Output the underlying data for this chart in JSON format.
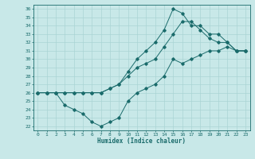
{
  "title": "",
  "xlabel": "Humidex (Indice chaleur)",
  "background_color": "#c8e8e8",
  "grid_color": "#aad4d4",
  "line_color": "#1a6b6b",
  "xlim": [
    -0.5,
    23.5
  ],
  "ylim": [
    21.5,
    36.5
  ],
  "xticks": [
    0,
    1,
    2,
    3,
    4,
    5,
    6,
    7,
    8,
    9,
    10,
    11,
    12,
    13,
    14,
    15,
    16,
    17,
    18,
    19,
    20,
    21,
    22,
    23
  ],
  "yticks": [
    22,
    23,
    24,
    25,
    26,
    27,
    28,
    29,
    30,
    31,
    32,
    33,
    34,
    35,
    36
  ],
  "line1_x": [
    0,
    1,
    2,
    3,
    4,
    5,
    6,
    7,
    8,
    9,
    10,
    11,
    12,
    13,
    14,
    15,
    16,
    17,
    18,
    19,
    20,
    21,
    22,
    23
  ],
  "line1_y": [
    26,
    26,
    26,
    24.5,
    24,
    23.5,
    22.5,
    22,
    22.5,
    23,
    25,
    26,
    26.5,
    27,
    28,
    30,
    29.5,
    30,
    30.5,
    31,
    31,
    31.5,
    31,
    31
  ],
  "line2_x": [
    0,
    1,
    2,
    3,
    4,
    5,
    6,
    7,
    8,
    9,
    10,
    11,
    12,
    13,
    14,
    15,
    16,
    17,
    18,
    19,
    20,
    21,
    22,
    23
  ],
  "line2_y": [
    26,
    26,
    26,
    26,
    26,
    26,
    26,
    26,
    26.5,
    27,
    28,
    29,
    29.5,
    30,
    31.5,
    33,
    34.5,
    34.5,
    33.5,
    32.5,
    32,
    32,
    31,
    31
  ],
  "line3_x": [
    0,
    1,
    2,
    3,
    4,
    5,
    6,
    7,
    8,
    9,
    10,
    11,
    12,
    13,
    14,
    15,
    16,
    17,
    18,
    19,
    20,
    21,
    22,
    23
  ],
  "line3_y": [
    26,
    26,
    26,
    26,
    26,
    26,
    26,
    26,
    26.5,
    27,
    28.5,
    30,
    31,
    32,
    33.5,
    36,
    35.5,
    34,
    34,
    33,
    33,
    32,
    31,
    31
  ]
}
